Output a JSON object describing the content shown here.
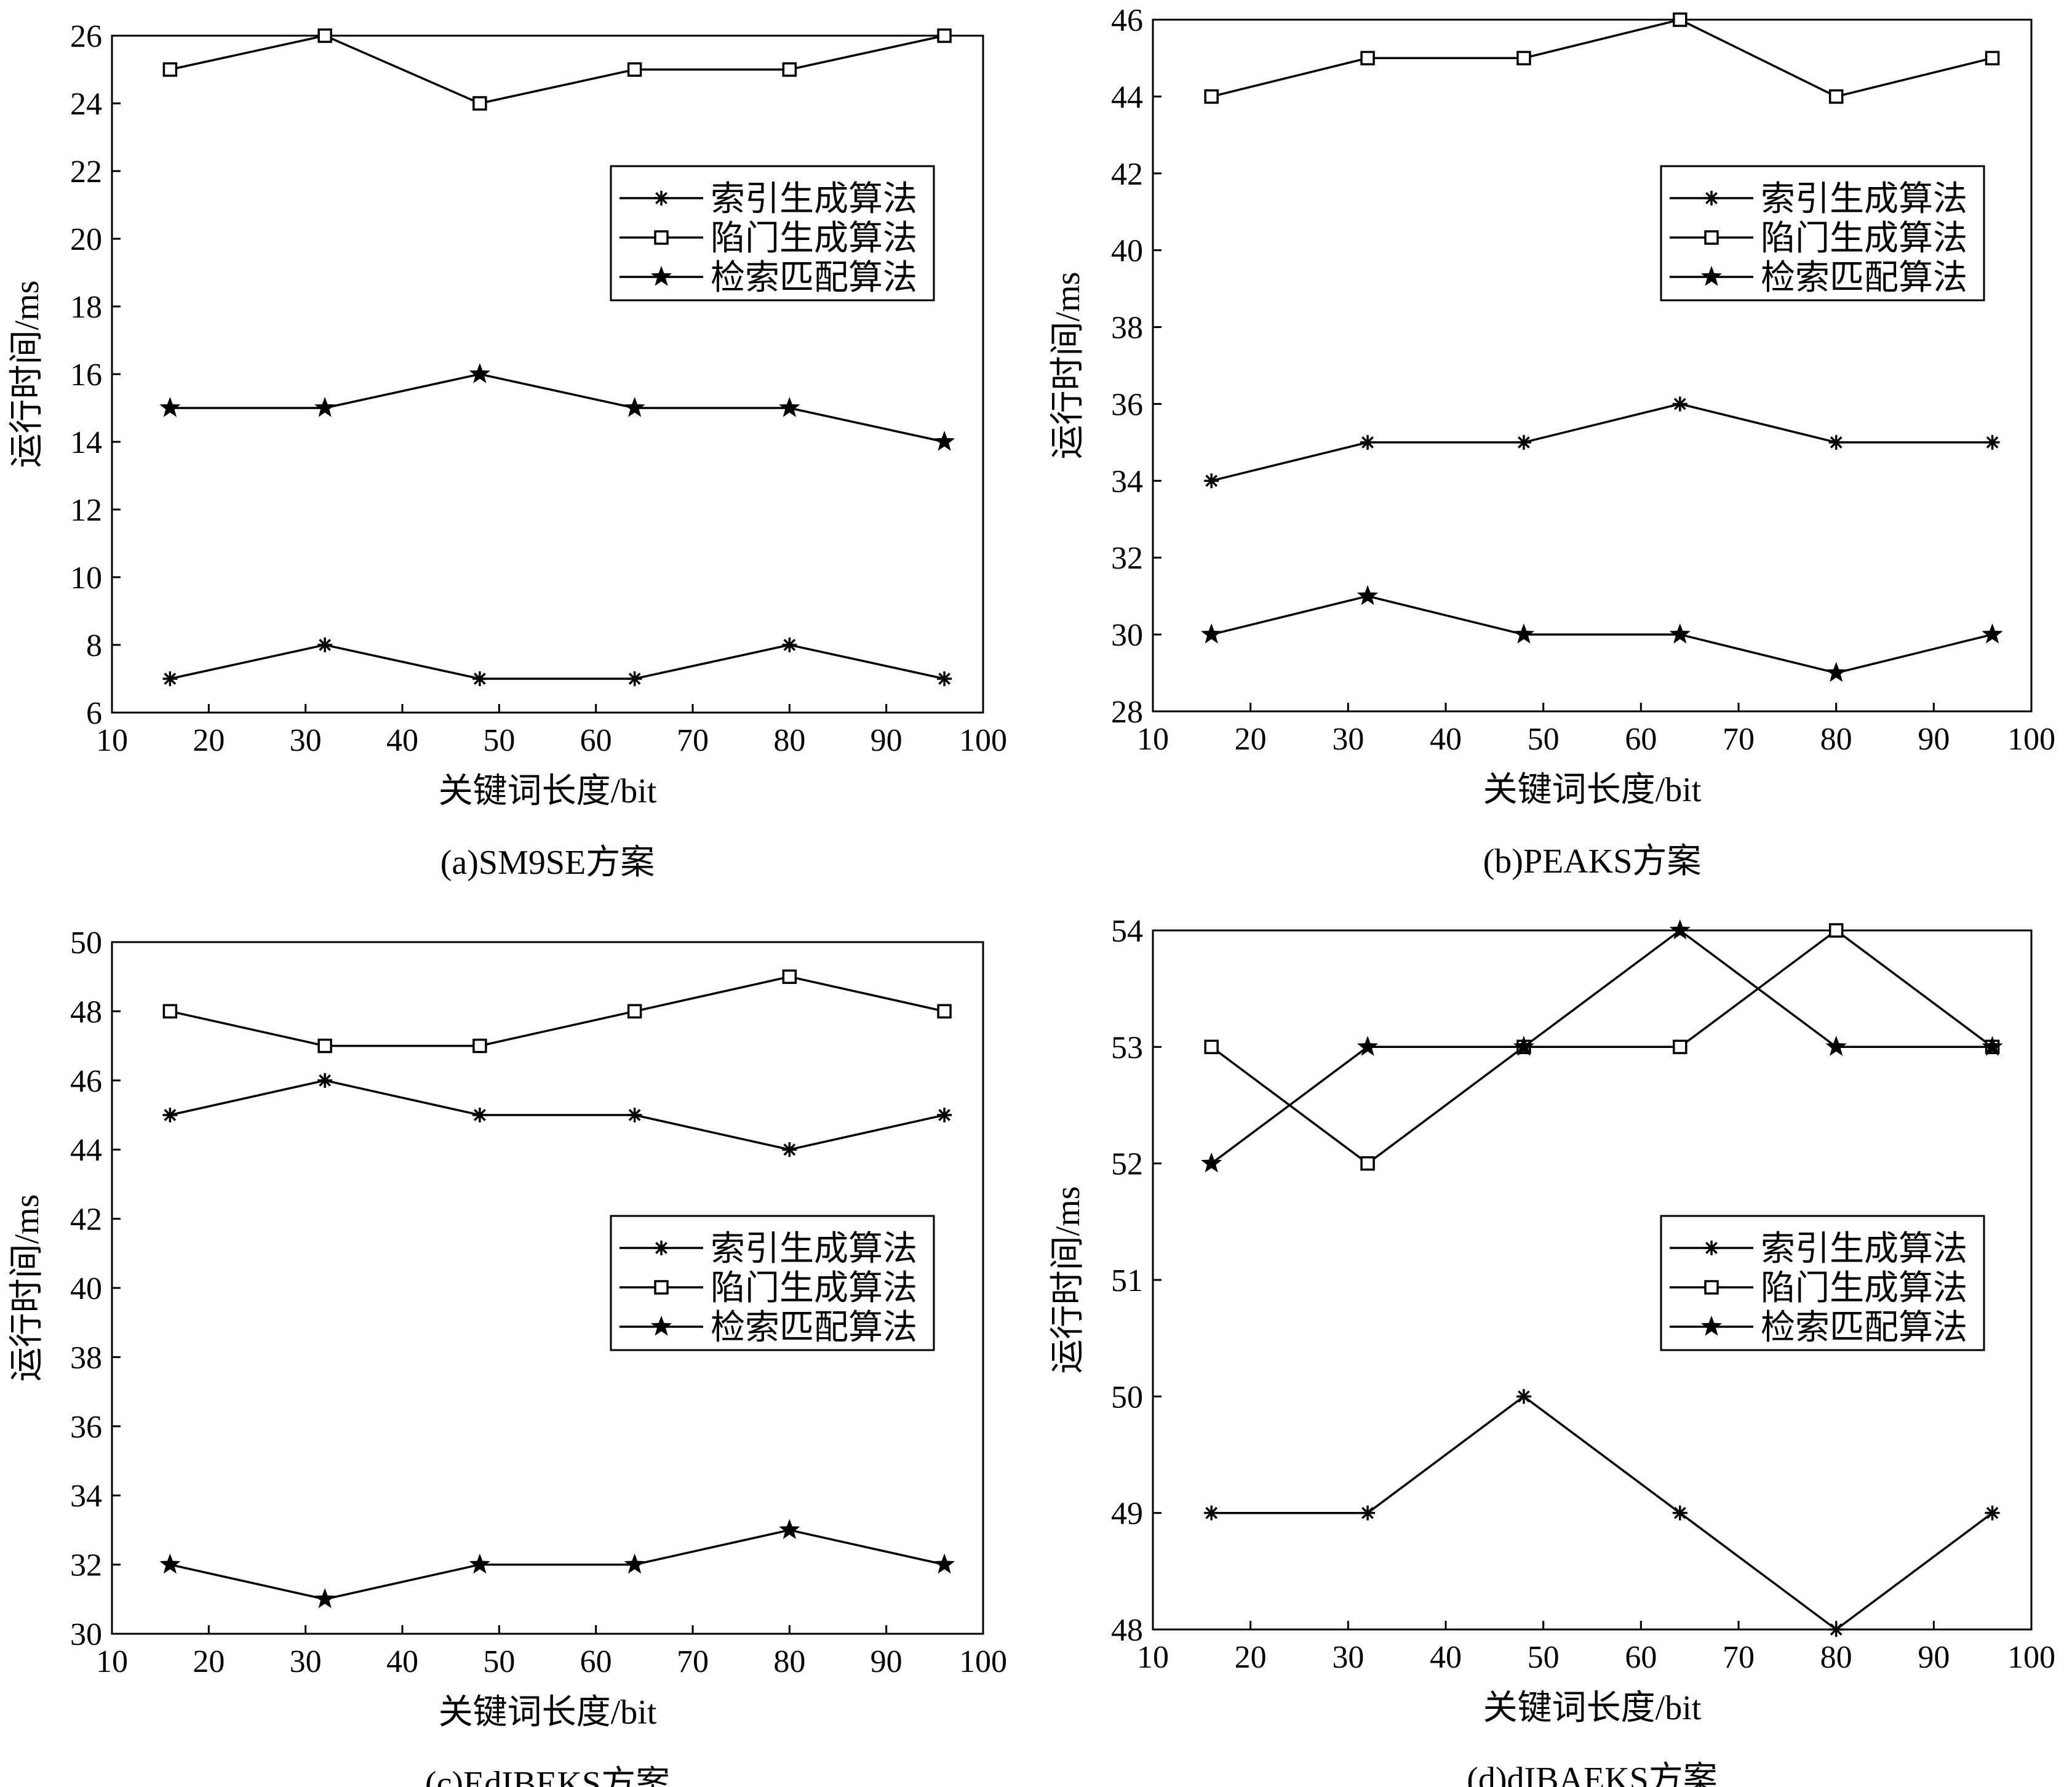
{
  "chart_data": [
    {
      "type": "line",
      "caption": "(a)SM9SE方案",
      "xlabel": "关键词长度/bit",
      "ylabel": "运行时间/ms",
      "xlim": [
        10,
        100
      ],
      "ylim": [
        6,
        26
      ],
      "xticks": [
        10,
        20,
        30,
        40,
        50,
        60,
        70,
        80,
        90,
        100
      ],
      "yticks": [
        6,
        8,
        10,
        12,
        14,
        16,
        18,
        20,
        22,
        24,
        26
      ],
      "x": [
        16,
        32,
        48,
        64,
        80,
        96
      ],
      "legend_position": "upper-right",
      "series": [
        {
          "name": "索引生成算法",
          "marker": "asterisk",
          "values": [
            7,
            8,
            7,
            7,
            8,
            7
          ]
        },
        {
          "name": "陷门生成算法",
          "marker": "square",
          "values": [
            25,
            26,
            24,
            25,
            25,
            26
          ]
        },
        {
          "name": "检索匹配算法",
          "marker": "star",
          "values": [
            15,
            15,
            16,
            15,
            15,
            14
          ]
        }
      ]
    },
    {
      "type": "line",
      "caption": "(b)PEAKS方案",
      "xlabel": "关键词长度/bit",
      "ylabel": "运行时间/ms",
      "xlim": [
        10,
        100
      ],
      "ylim": [
        28,
        46
      ],
      "xticks": [
        10,
        20,
        30,
        40,
        50,
        60,
        70,
        80,
        90,
        100
      ],
      "yticks": [
        28,
        30,
        32,
        34,
        36,
        38,
        40,
        42,
        44,
        46
      ],
      "x": [
        16,
        32,
        48,
        64,
        80,
        96
      ],
      "legend_position": "upper-right",
      "series": [
        {
          "name": "索引生成算法",
          "marker": "asterisk",
          "values": [
            34,
            35,
            35,
            36,
            35,
            35
          ]
        },
        {
          "name": "陷门生成算法",
          "marker": "square",
          "values": [
            44,
            45,
            45,
            46,
            44,
            45
          ]
        },
        {
          "name": "检索匹配算法",
          "marker": "star",
          "values": [
            30,
            31,
            30,
            30,
            29,
            30
          ]
        }
      ]
    },
    {
      "type": "line",
      "caption": "(c)EdIBEKS方案",
      "xlabel": "关键词长度/bit",
      "ylabel": "运行时间/ms",
      "xlim": [
        10,
        100
      ],
      "ylim": [
        30,
        50
      ],
      "xticks": [
        10,
        20,
        30,
        40,
        50,
        60,
        70,
        80,
        90,
        100
      ],
      "yticks": [
        30,
        32,
        34,
        36,
        38,
        40,
        42,
        44,
        46,
        48,
        50
      ],
      "x": [
        16,
        32,
        48,
        64,
        80,
        96
      ],
      "legend_position": "center-right",
      "series": [
        {
          "name": "索引生成算法",
          "marker": "asterisk",
          "values": [
            45,
            46,
            45,
            45,
            44,
            45
          ]
        },
        {
          "name": "陷门生成算法",
          "marker": "square",
          "values": [
            48,
            47,
            47,
            48,
            49,
            48
          ]
        },
        {
          "name": "检索匹配算法",
          "marker": "star",
          "values": [
            32,
            31,
            32,
            32,
            33,
            32
          ]
        }
      ]
    },
    {
      "type": "line",
      "caption": "(d)dIBAEKS方案",
      "xlabel": "关键词长度/bit",
      "ylabel": "运行时间/ms",
      "xlim": [
        10,
        100
      ],
      "ylim": [
        48,
        54
      ],
      "xticks": [
        10,
        20,
        30,
        40,
        50,
        60,
        70,
        80,
        90,
        100
      ],
      "yticks": [
        48,
        49,
        50,
        51,
        52,
        53,
        54
      ],
      "x": [
        16,
        32,
        48,
        64,
        80,
        96
      ],
      "legend_position": "center-right",
      "series": [
        {
          "name": "索引生成算法",
          "marker": "asterisk",
          "values": [
            49,
            49,
            50,
            49,
            48,
            49
          ]
        },
        {
          "name": "陷门生成算法",
          "marker": "square",
          "values": [
            53,
            52,
            53,
            53,
            54,
            53
          ]
        },
        {
          "name": "检索匹配算法",
          "marker": "star",
          "values": [
            52,
            53,
            53,
            54,
            53,
            53
          ]
        }
      ]
    }
  ]
}
